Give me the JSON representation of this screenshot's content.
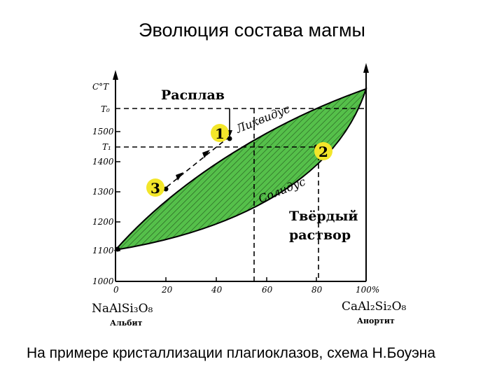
{
  "title": "Эволюция состава магмы",
  "caption": "На примере кристаллизации плагиоклазов, схема Н.Боуэна",
  "diagram": {
    "y_axis_label": "C°T",
    "y_markers": [
      "T₀",
      "T₁"
    ],
    "y_ticks": [
      "1500",
      "1400",
      "1300",
      "1200",
      "1100",
      "1000"
    ],
    "x_ticks": [
      "0",
      "20",
      "40",
      "60",
      "80",
      "100%"
    ],
    "region_melt": "Расплав",
    "region_solid_line1": "Твёрдый",
    "region_solid_line2": "раствор",
    "liquidus_label": "Ликвидус",
    "solidus_label": "Солидус",
    "point_labels": [
      "1",
      "2",
      "3"
    ],
    "endmember_left_formula": "NaAlSi₃O₈",
    "endmember_left_name": "Альбит",
    "endmember_right_formula": "CaAl₂Si₂O₈",
    "endmember_right_name": "Анортит",
    "fill_color": "#55c04a",
    "point_marker_color": "#f3e62a"
  }
}
